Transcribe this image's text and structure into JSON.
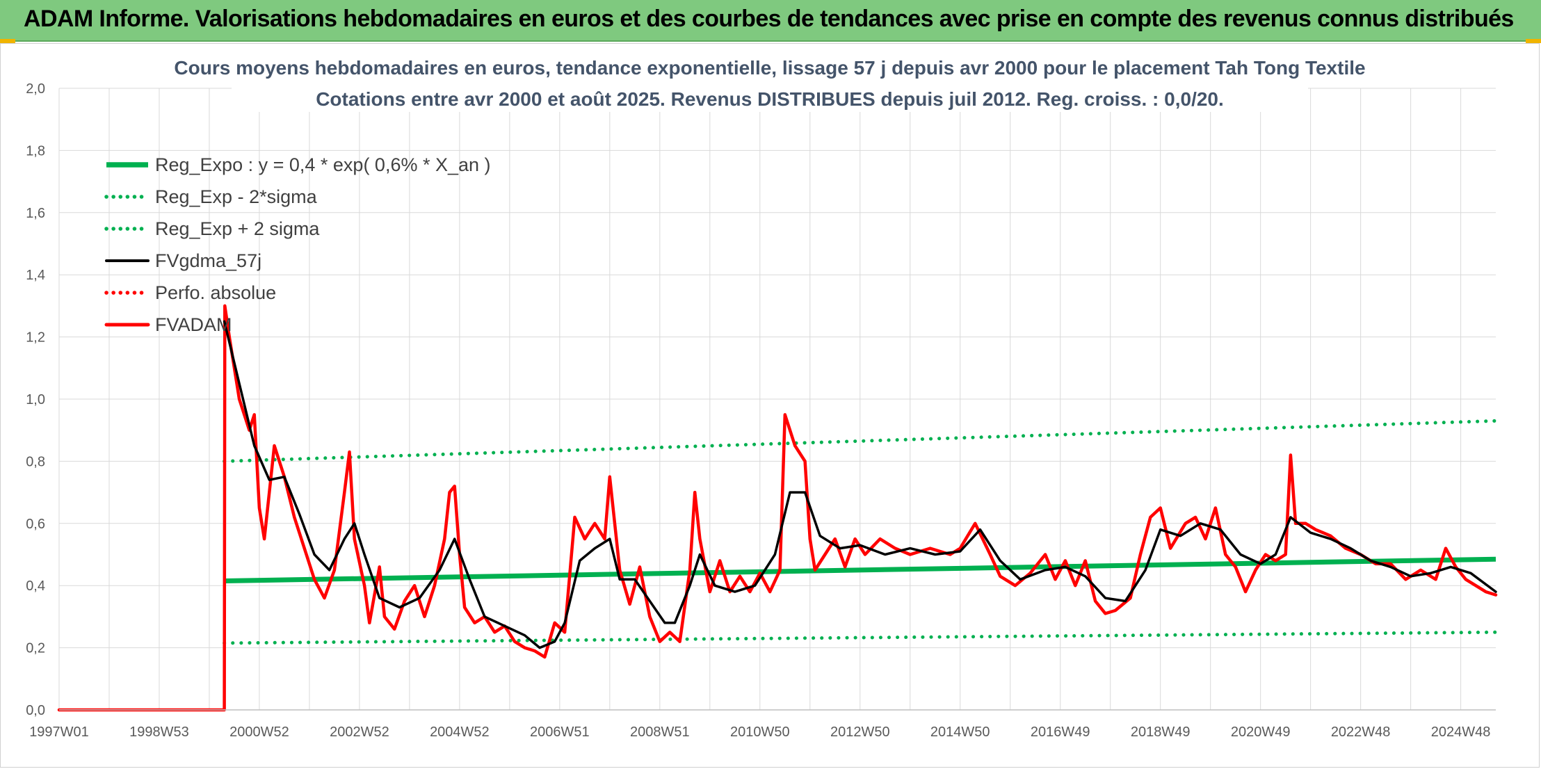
{
  "header": {
    "title": "ADAM Informe. Valorisations hebdomadaires en euros et des courbes de tendances avec prise en compte des revenus connus distribués"
  },
  "colors": {
    "header_bg": "#7fc97f",
    "green": "#00b050",
    "red": "#ff0000",
    "black": "#000000",
    "grid": "#d9d9d9"
  },
  "chart_data": {
    "type": "line",
    "title": "Cours moyens hebdomadaires en euros, tendance exponentielle, lissage 57 j depuis avr 2000 pour le placement Tah Tong Textile",
    "subtitle": "Cotations entre avr 2000 et août 2025. Revenus DISTRIBUES depuis juil 2012. Reg. croiss. : 0,0/20.",
    "xlabel": "",
    "ylabel": "",
    "xlim": [
      1997.0,
      2025.7
    ],
    "ylim": [
      0,
      2.0
    ],
    "y_ticks": [
      "0,0",
      "0,2",
      "0,4",
      "0,6",
      "0,8",
      "1,0",
      "1,2",
      "1,4",
      "1,6",
      "1,8",
      "2,0"
    ],
    "x_ticks": [
      {
        "label": "1997W01",
        "x": 1997.0
      },
      {
        "label": "1998W53",
        "x": 1999.0
      },
      {
        "label": "2000W52",
        "x": 2001.0
      },
      {
        "label": "2002W52",
        "x": 2003.0
      },
      {
        "label": "2004W52",
        "x": 2005.0
      },
      {
        "label": "2006W51",
        "x": 2007.0
      },
      {
        "label": "2008W51",
        "x": 2009.0
      },
      {
        "label": "2010W50",
        "x": 2011.0
      },
      {
        "label": "2012W50",
        "x": 2013.0
      },
      {
        "label": "2014W50",
        "x": 2015.0
      },
      {
        "label": "2016W49",
        "x": 2017.0
      },
      {
        "label": "2018W49",
        "x": 2019.0
      },
      {
        "label": "2020W49",
        "x": 2021.0
      },
      {
        "label": "2022W48",
        "x": 2023.0
      },
      {
        "label": "2024W48",
        "x": 2025.0
      }
    ],
    "grid": true,
    "legend_position": "top-left",
    "series": [
      {
        "name": "Reg_Expo : y = 0,4 * exp( 0,6% *  X_an )",
        "style": "solid",
        "color": "#00b050",
        "points": [
          [
            2000.3,
            0.415
          ],
          [
            2025.7,
            0.485
          ]
        ]
      },
      {
        "name": "Reg_Exp - 2*sigma",
        "style": "dotted",
        "color": "#00b050",
        "points": [
          [
            2000.3,
            0.215
          ],
          [
            2025.7,
            0.25
          ]
        ]
      },
      {
        "name": "Reg_Exp + 2 sigma",
        "style": "dotted",
        "color": "#00b050",
        "points": [
          [
            2000.3,
            0.8
          ],
          [
            2025.7,
            0.93
          ]
        ]
      },
      {
        "name": "FVgdma_57j",
        "style": "solid",
        "color": "#000000",
        "points": [
          [
            2000.3,
            1.25
          ],
          [
            2000.6,
            1.05
          ],
          [
            2000.9,
            0.85
          ],
          [
            2001.2,
            0.74
          ],
          [
            2001.5,
            0.75
          ],
          [
            2001.8,
            0.63
          ],
          [
            2002.1,
            0.5
          ],
          [
            2002.4,
            0.45
          ],
          [
            2002.7,
            0.55
          ],
          [
            2002.9,
            0.6
          ],
          [
            2003.1,
            0.5
          ],
          [
            2003.4,
            0.36
          ],
          [
            2003.8,
            0.33
          ],
          [
            2004.2,
            0.36
          ],
          [
            2004.6,
            0.45
          ],
          [
            2004.9,
            0.55
          ],
          [
            2005.2,
            0.42
          ],
          [
            2005.5,
            0.3
          ],
          [
            2005.9,
            0.27
          ],
          [
            2006.3,
            0.24
          ],
          [
            2006.6,
            0.2
          ],
          [
            2006.9,
            0.22
          ],
          [
            2007.1,
            0.28
          ],
          [
            2007.4,
            0.48
          ],
          [
            2007.7,
            0.52
          ],
          [
            2008.0,
            0.55
          ],
          [
            2008.2,
            0.42
          ],
          [
            2008.5,
            0.42
          ],
          [
            2008.8,
            0.35
          ],
          [
            2009.1,
            0.28
          ],
          [
            2009.3,
            0.28
          ],
          [
            2009.6,
            0.4
          ],
          [
            2009.8,
            0.5
          ],
          [
            2010.1,
            0.4
          ],
          [
            2010.5,
            0.38
          ],
          [
            2010.9,
            0.4
          ],
          [
            2011.3,
            0.5
          ],
          [
            2011.6,
            0.7
          ],
          [
            2011.9,
            0.7
          ],
          [
            2012.2,
            0.56
          ],
          [
            2012.6,
            0.52
          ],
          [
            2013.0,
            0.53
          ],
          [
            2013.5,
            0.5
          ],
          [
            2014.0,
            0.52
          ],
          [
            2014.5,
            0.5
          ],
          [
            2015.0,
            0.51
          ],
          [
            2015.4,
            0.58
          ],
          [
            2015.8,
            0.48
          ],
          [
            2016.2,
            0.42
          ],
          [
            2016.7,
            0.45
          ],
          [
            2017.1,
            0.46
          ],
          [
            2017.5,
            0.43
          ],
          [
            2017.9,
            0.36
          ],
          [
            2018.3,
            0.35
          ],
          [
            2018.7,
            0.45
          ],
          [
            2019.0,
            0.58
          ],
          [
            2019.4,
            0.56
          ],
          [
            2019.8,
            0.6
          ],
          [
            2020.2,
            0.58
          ],
          [
            2020.6,
            0.5
          ],
          [
            2021.0,
            0.47
          ],
          [
            2021.3,
            0.5
          ],
          [
            2021.6,
            0.62
          ],
          [
            2022.0,
            0.57
          ],
          [
            2022.4,
            0.55
          ],
          [
            2022.8,
            0.52
          ],
          [
            2023.2,
            0.48
          ],
          [
            2023.6,
            0.46
          ],
          [
            2024.0,
            0.43
          ],
          [
            2024.4,
            0.44
          ],
          [
            2024.8,
            0.46
          ],
          [
            2025.2,
            0.44
          ],
          [
            2025.7,
            0.38
          ]
        ]
      },
      {
        "name": "Perfo. absolue",
        "style": "dotted",
        "color": "#ff0000",
        "points": []
      },
      {
        "name": "FVADAM",
        "style": "solid",
        "color": "#ff0000",
        "points": [
          [
            1997.0,
            0.0
          ],
          [
            2000.3,
            0.0
          ],
          [
            2000.31,
            1.3
          ],
          [
            2000.4,
            1.2
          ],
          [
            2000.6,
            1.0
          ],
          [
            2000.8,
            0.9
          ],
          [
            2000.9,
            0.95
          ],
          [
            2001.0,
            0.65
          ],
          [
            2001.1,
            0.55
          ],
          [
            2001.3,
            0.85
          ],
          [
            2001.5,
            0.75
          ],
          [
            2001.7,
            0.62
          ],
          [
            2001.9,
            0.52
          ],
          [
            2002.1,
            0.42
          ],
          [
            2002.3,
            0.36
          ],
          [
            2002.5,
            0.45
          ],
          [
            2002.7,
            0.7
          ],
          [
            2002.8,
            0.83
          ],
          [
            2002.9,
            0.55
          ],
          [
            2003.1,
            0.4
          ],
          [
            2003.2,
            0.28
          ],
          [
            2003.4,
            0.46
          ],
          [
            2003.5,
            0.3
          ],
          [
            2003.7,
            0.26
          ],
          [
            2003.9,
            0.35
          ],
          [
            2004.1,
            0.4
          ],
          [
            2004.3,
            0.3
          ],
          [
            2004.5,
            0.4
          ],
          [
            2004.7,
            0.55
          ],
          [
            2004.8,
            0.7
          ],
          [
            2004.9,
            0.72
          ],
          [
            2005.0,
            0.5
          ],
          [
            2005.1,
            0.33
          ],
          [
            2005.3,
            0.28
          ],
          [
            2005.5,
            0.3
          ],
          [
            2005.7,
            0.25
          ],
          [
            2005.9,
            0.27
          ],
          [
            2006.1,
            0.22
          ],
          [
            2006.3,
            0.2
          ],
          [
            2006.5,
            0.19
          ],
          [
            2006.7,
            0.17
          ],
          [
            2006.9,
            0.28
          ],
          [
            2007.1,
            0.25
          ],
          [
            2007.3,
            0.62
          ],
          [
            2007.5,
            0.55
          ],
          [
            2007.7,
            0.6
          ],
          [
            2007.9,
            0.55
          ],
          [
            2008.0,
            0.75
          ],
          [
            2008.2,
            0.45
          ],
          [
            2008.4,
            0.34
          ],
          [
            2008.6,
            0.46
          ],
          [
            2008.8,
            0.3
          ],
          [
            2009.0,
            0.22
          ],
          [
            2009.2,
            0.25
          ],
          [
            2009.4,
            0.22
          ],
          [
            2009.6,
            0.45
          ],
          [
            2009.7,
            0.7
          ],
          [
            2009.8,
            0.55
          ],
          [
            2010.0,
            0.38
          ],
          [
            2010.2,
            0.48
          ],
          [
            2010.4,
            0.38
          ],
          [
            2010.6,
            0.43
          ],
          [
            2010.8,
            0.38
          ],
          [
            2011.0,
            0.44
          ],
          [
            2011.2,
            0.38
          ],
          [
            2011.4,
            0.45
          ],
          [
            2011.5,
            0.95
          ],
          [
            2011.7,
            0.85
          ],
          [
            2011.9,
            0.8
          ],
          [
            2012.0,
            0.55
          ],
          [
            2012.1,
            0.45
          ],
          [
            2012.3,
            0.5
          ],
          [
            2012.5,
            0.55
          ],
          [
            2012.7,
            0.46
          ],
          [
            2012.9,
            0.55
          ],
          [
            2013.1,
            0.5
          ],
          [
            2013.4,
            0.55
          ],
          [
            2013.7,
            0.52
          ],
          [
            2014.0,
            0.5
          ],
          [
            2014.4,
            0.52
          ],
          [
            2014.8,
            0.5
          ],
          [
            2015.0,
            0.52
          ],
          [
            2015.3,
            0.6
          ],
          [
            2015.6,
            0.5
          ],
          [
            2015.8,
            0.43
          ],
          [
            2016.1,
            0.4
          ],
          [
            2016.4,
            0.44
          ],
          [
            2016.7,
            0.5
          ],
          [
            2016.9,
            0.42
          ],
          [
            2017.1,
            0.48
          ],
          [
            2017.3,
            0.4
          ],
          [
            2017.5,
            0.48
          ],
          [
            2017.7,
            0.35
          ],
          [
            2017.9,
            0.31
          ],
          [
            2018.1,
            0.32
          ],
          [
            2018.4,
            0.36
          ],
          [
            2018.6,
            0.5
          ],
          [
            2018.8,
            0.62
          ],
          [
            2019.0,
            0.65
          ],
          [
            2019.2,
            0.52
          ],
          [
            2019.5,
            0.6
          ],
          [
            2019.7,
            0.62
          ],
          [
            2019.9,
            0.55
          ],
          [
            2020.1,
            0.65
          ],
          [
            2020.3,
            0.5
          ],
          [
            2020.5,
            0.46
          ],
          [
            2020.7,
            0.38
          ],
          [
            2020.9,
            0.45
          ],
          [
            2021.1,
            0.5
          ],
          [
            2021.3,
            0.48
          ],
          [
            2021.5,
            0.5
          ],
          [
            2021.6,
            0.82
          ],
          [
            2021.7,
            0.6
          ],
          [
            2021.9,
            0.6
          ],
          [
            2022.1,
            0.58
          ],
          [
            2022.4,
            0.56
          ],
          [
            2022.7,
            0.52
          ],
          [
            2023.0,
            0.5
          ],
          [
            2023.3,
            0.47
          ],
          [
            2023.6,
            0.47
          ],
          [
            2023.9,
            0.42
          ],
          [
            2024.2,
            0.45
          ],
          [
            2024.5,
            0.42
          ],
          [
            2024.7,
            0.52
          ],
          [
            2024.9,
            0.46
          ],
          [
            2025.1,
            0.42
          ],
          [
            2025.3,
            0.4
          ],
          [
            2025.5,
            0.38
          ],
          [
            2025.7,
            0.37
          ]
        ]
      }
    ]
  }
}
